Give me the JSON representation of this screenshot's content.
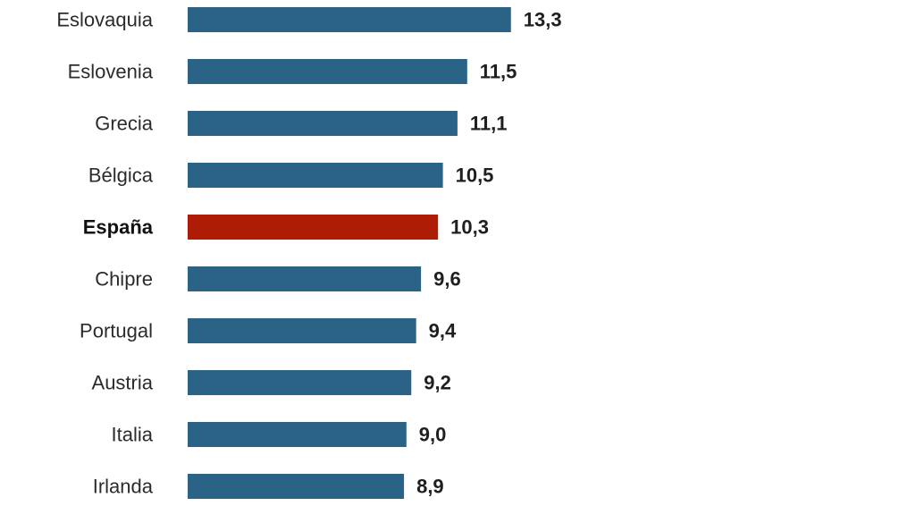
{
  "chart_data": {
    "type": "bar",
    "orientation": "horizontal",
    "categories": [
      "Eslovaquia",
      "Eslovenia",
      "Grecia",
      "Bélgica",
      "España",
      "Chipre",
      "Portugal",
      "Austria",
      "Italia",
      "Irlanda"
    ],
    "values": [
      13.3,
      11.5,
      11.1,
      10.5,
      10.3,
      9.6,
      9.4,
      9.2,
      9.0,
      8.9
    ],
    "value_labels": [
      "13,3",
      "11,5",
      "11,1",
      "10,5",
      "10,3",
      "9,6",
      "9,4",
      "9,2",
      "9,0",
      "8,9"
    ],
    "highlight_category": "España",
    "colors": {
      "bar": "#2a6385",
      "highlight": "#ae1c05"
    },
    "grid": false,
    "legend": "none"
  }
}
